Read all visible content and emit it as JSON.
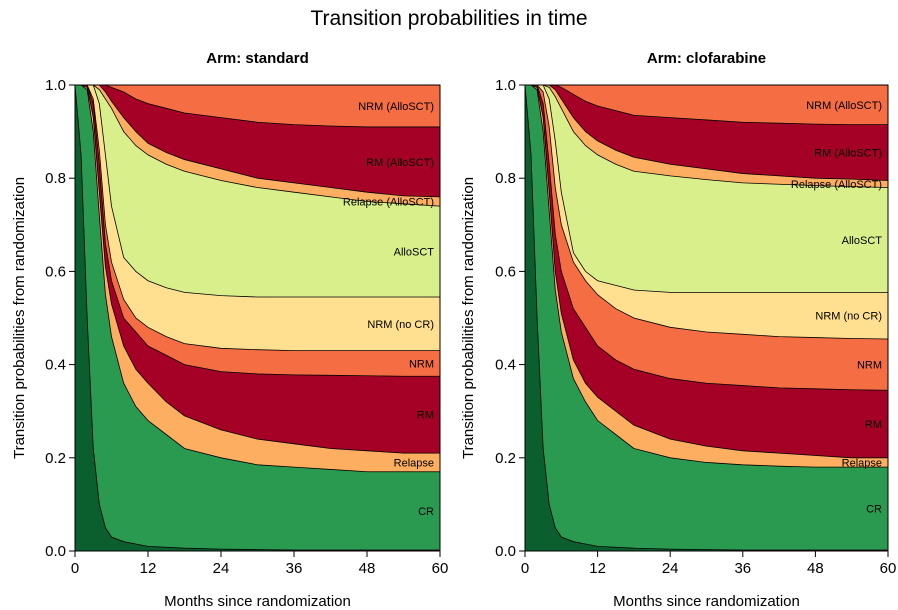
{
  "figure": {
    "title": "Transition probabilities in time"
  },
  "colors": {
    "CR_initial": "#0b5e2e",
    "CR": "#2a9a50",
    "Relapse": "#fdae61",
    "RM": "#a50026",
    "NRM": "#f46d43",
    "NRM (no CR)": "#fee090",
    "AlloSCT": "#d9ef8b",
    "Relapse (AlloSCT)": "#fdae61",
    "RM (AlloSCT)": "#a50026",
    "NRM (AlloSCT)": "#f46d43"
  },
  "chart_data": [
    {
      "type": "area",
      "subtype": "stacked",
      "title": "Arm: standard",
      "xlabel": "Months since randomization",
      "ylabel": "Transition probabilities from randomization",
      "xlim": [
        0,
        60
      ],
      "ylim": [
        0,
        1
      ],
      "xticks": [
        "0",
        "12",
        "24",
        "36",
        "48",
        "60"
      ],
      "yticks": [
        "0.0",
        "0.2",
        "0.4",
        "0.6",
        "0.8",
        "1.0"
      ],
      "states": [
        "CR_initial",
        "CR",
        "Relapse",
        "RM",
        "NRM",
        "NRM (no CR)",
        "AlloSCT",
        "Relapse (AlloSCT)",
        "RM (AlloSCT)",
        "NRM (AlloSCT)"
      ],
      "labels": [
        "CR",
        "Relapse",
        "RM",
        "NRM",
        "NRM (no CR)",
        "AlloSCT",
        "Relapse (AlloSCT)",
        "RM (AlloSCT)",
        "NRM (AlloSCT)"
      ],
      "x": [
        0,
        1,
        2,
        3,
        4,
        5,
        6,
        8,
        10,
        12,
        15,
        18,
        24,
        30,
        36,
        42,
        48,
        54,
        60
      ],
      "cumulative": [
        [
          1.0,
          0.85,
          0.5,
          0.22,
          0.1,
          0.05,
          0.03,
          0.02,
          0.015,
          0.01,
          0.008,
          0.006,
          0.004,
          0.003,
          0.002,
          0.002,
          0.002,
          0.002,
          0.002
        ],
        [
          1.0,
          1.0,
          0.99,
          0.9,
          0.72,
          0.55,
          0.46,
          0.36,
          0.31,
          0.28,
          0.25,
          0.22,
          0.2,
          0.185,
          0.18,
          0.175,
          0.17,
          0.17,
          0.17
        ],
        [
          1.0,
          1.0,
          0.995,
          0.93,
          0.77,
          0.61,
          0.53,
          0.44,
          0.39,
          0.36,
          0.32,
          0.29,
          0.26,
          0.24,
          0.23,
          0.22,
          0.215,
          0.21,
          0.21
        ],
        [
          1.0,
          1.0,
          1.0,
          0.96,
          0.83,
          0.66,
          0.58,
          0.5,
          0.47,
          0.44,
          0.42,
          0.4,
          0.385,
          0.38,
          0.378,
          0.377,
          0.376,
          0.375,
          0.375
        ],
        [
          1.0,
          1.0,
          1.0,
          0.97,
          0.86,
          0.7,
          0.62,
          0.54,
          0.5,
          0.48,
          0.46,
          0.445,
          0.435,
          0.432,
          0.43,
          0.43,
          0.43,
          0.43,
          0.43
        ],
        [
          1.0,
          1.0,
          1.0,
          1.0,
          0.96,
          0.85,
          0.74,
          0.63,
          0.6,
          0.58,
          0.565,
          0.555,
          0.548,
          0.545,
          0.545,
          0.545,
          0.545,
          0.545,
          0.545
        ],
        [
          1.0,
          1.0,
          1.0,
          1.0,
          0.99,
          0.97,
          0.95,
          0.9,
          0.87,
          0.85,
          0.83,
          0.815,
          0.795,
          0.78,
          0.77,
          0.76,
          0.75,
          0.745,
          0.74
        ],
        [
          1.0,
          1.0,
          1.0,
          1.0,
          1.0,
          0.985,
          0.965,
          0.93,
          0.9,
          0.875,
          0.855,
          0.84,
          0.82,
          0.8,
          0.79,
          0.78,
          0.77,
          0.762,
          0.76
        ],
        [
          1.0,
          1.0,
          1.0,
          1.0,
          1.0,
          1.0,
          0.995,
          0.985,
          0.97,
          0.96,
          0.95,
          0.94,
          0.93,
          0.92,
          0.915,
          0.912,
          0.91,
          0.91,
          0.91
        ],
        [
          1.0,
          1.0,
          1.0,
          1.0,
          1.0,
          1.0,
          1.0,
          1.0,
          1.0,
          1.0,
          1.0,
          1.0,
          1.0,
          1.0,
          1.0,
          1.0,
          1.0,
          1.0,
          1.0
        ]
      ]
    },
    {
      "type": "area",
      "subtype": "stacked",
      "title": "Arm: clofarabine",
      "xlabel": "Months since randomization",
      "ylabel": "Transition probabilities from randomization",
      "xlim": [
        0,
        60
      ],
      "ylim": [
        0,
        1
      ],
      "xticks": [
        "0",
        "12",
        "24",
        "36",
        "48",
        "60"
      ],
      "yticks": [
        "0.0",
        "0.2",
        "0.4",
        "0.6",
        "0.8",
        "1.0"
      ],
      "states": [
        "CR_initial",
        "CR",
        "Relapse",
        "RM",
        "NRM",
        "NRM (no CR)",
        "AlloSCT",
        "Relapse (AlloSCT)",
        "RM (AlloSCT)",
        "NRM (AlloSCT)"
      ],
      "labels": [
        "CR",
        "Relapse",
        "RM",
        "NRM",
        "NRM (no CR)",
        "AlloSCT",
        "Relapse (AlloSCT)",
        "RM (AlloSCT)",
        "NRM (AlloSCT)"
      ],
      "x": [
        0,
        1,
        2,
        3,
        4,
        5,
        6,
        8,
        10,
        12,
        15,
        18,
        24,
        30,
        36,
        42,
        48,
        54,
        60
      ],
      "cumulative": [
        [
          1.0,
          0.85,
          0.5,
          0.22,
          0.1,
          0.05,
          0.03,
          0.02,
          0.015,
          0.01,
          0.008,
          0.006,
          0.004,
          0.003,
          0.002,
          0.002,
          0.002,
          0.002,
          0.002
        ],
        [
          1.0,
          1.0,
          0.99,
          0.9,
          0.73,
          0.56,
          0.47,
          0.37,
          0.32,
          0.28,
          0.25,
          0.22,
          0.2,
          0.19,
          0.185,
          0.182,
          0.18,
          0.18,
          0.18
        ],
        [
          1.0,
          1.0,
          0.995,
          0.93,
          0.77,
          0.6,
          0.51,
          0.41,
          0.36,
          0.33,
          0.3,
          0.27,
          0.24,
          0.225,
          0.215,
          0.21,
          0.205,
          0.2,
          0.2
        ],
        [
          1.0,
          1.0,
          1.0,
          0.96,
          0.83,
          0.68,
          0.6,
          0.52,
          0.48,
          0.44,
          0.41,
          0.39,
          0.37,
          0.36,
          0.355,
          0.35,
          0.348,
          0.346,
          0.345
        ],
        [
          1.0,
          1.0,
          1.0,
          0.985,
          0.91,
          0.78,
          0.7,
          0.62,
          0.58,
          0.55,
          0.52,
          0.5,
          0.48,
          0.47,
          0.465,
          0.46,
          0.458,
          0.456,
          0.455
        ],
        [
          1.0,
          1.0,
          1.0,
          1.0,
          0.97,
          0.88,
          0.77,
          0.64,
          0.6,
          0.58,
          0.57,
          0.56,
          0.555,
          0.555,
          0.555,
          0.555,
          0.555,
          0.555,
          0.555
        ],
        [
          1.0,
          1.0,
          1.0,
          1.0,
          0.995,
          0.975,
          0.95,
          0.9,
          0.87,
          0.85,
          0.83,
          0.815,
          0.805,
          0.797,
          0.79,
          0.787,
          0.784,
          0.782,
          0.78
        ],
        [
          1.0,
          1.0,
          1.0,
          1.0,
          1.0,
          0.99,
          0.97,
          0.93,
          0.9,
          0.88,
          0.86,
          0.845,
          0.83,
          0.82,
          0.81,
          0.805,
          0.8,
          0.798,
          0.795
        ],
        [
          1.0,
          1.0,
          1.0,
          1.0,
          1.0,
          1.0,
          0.995,
          0.98,
          0.965,
          0.955,
          0.945,
          0.935,
          0.93,
          0.925,
          0.92,
          0.918,
          0.916,
          0.915,
          0.915
        ],
        [
          1.0,
          1.0,
          1.0,
          1.0,
          1.0,
          1.0,
          1.0,
          1.0,
          1.0,
          1.0,
          1.0,
          1.0,
          1.0,
          1.0,
          1.0,
          1.0,
          1.0,
          1.0,
          1.0
        ]
      ]
    }
  ]
}
